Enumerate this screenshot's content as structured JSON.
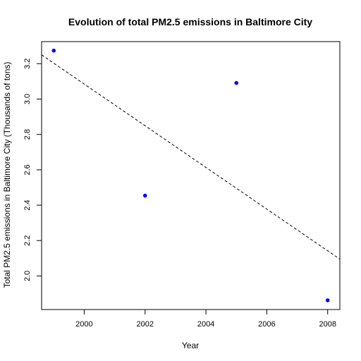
{
  "chart_data": {
    "type": "scatter",
    "title": "Evolution of total PM2.5 emissions in Baltimore City",
    "xlabel": "Year",
    "ylabel": "Total PM2.5 emissions in Baltimore City (Thousands of tons)",
    "x": [
      1999,
      2002,
      2005,
      2008
    ],
    "y": [
      3.274,
      2.454,
      3.091,
      1.862
    ],
    "xticks": [
      2000,
      2002,
      2004,
      2006,
      2008
    ],
    "yticks": [
      2.0,
      2.2,
      2.4,
      2.6,
      2.8,
      3.0,
      3.2
    ],
    "xlim": [
      1998.6,
      2008.4
    ],
    "ylim": [
      1.81,
      3.325
    ],
    "trend_line": {
      "x": [
        1998.6,
        2008.4
      ],
      "y": [
        3.25,
        2.095
      ]
    },
    "point_color": "#0000ff",
    "line_color": "#000000",
    "grid": false,
    "legend": "none"
  }
}
